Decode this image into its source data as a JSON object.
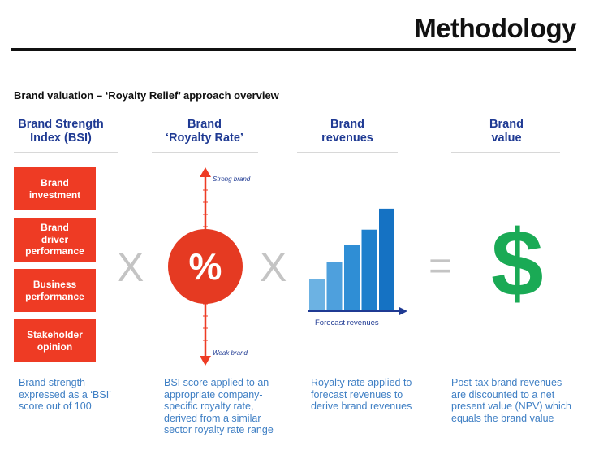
{
  "header": {
    "title": "Methodology",
    "subtitle": "Brand valuation – ‘Royalty Relief’ approach overview"
  },
  "columns": [
    {
      "heading_line1": "Brand Strength",
      "heading_line2": "Index (BSI)"
    },
    {
      "heading_line1": "Brand",
      "heading_line2": "‘Royalty Rate’"
    },
    {
      "heading_line1": "Brand",
      "heading_line2": "revenues"
    },
    {
      "heading_line1": "Brand",
      "heading_line2": "value"
    }
  ],
  "bsi_boxes": [
    {
      "line1": "Brand",
      "line2": "investment",
      "line3": ""
    },
    {
      "line1": "Brand",
      "line2": "driver",
      "line3": "performance"
    },
    {
      "line1": "Business",
      "line2": "performance",
      "line3": ""
    },
    {
      "line1": "Stakeholder",
      "line2": "opinion",
      "line3": ""
    }
  ],
  "operators": {
    "times1": "X",
    "times2": "X",
    "equals": "="
  },
  "royalty": {
    "symbol": "%",
    "axis_top_label": "Strong brand",
    "axis_bottom_label": "Weak brand"
  },
  "revenues": {
    "axis_label": "Forecast revenues",
    "bars": [
      0.28,
      0.44,
      0.59,
      0.73,
      0.92
    ],
    "bar_colors": [
      "#6cb2e3",
      "#4ea0dd",
      "#2f8ed5",
      "#1e7fcc",
      "#1572c3"
    ]
  },
  "value": {
    "symbol": "$",
    "color": "#1aaa55"
  },
  "descriptions": [
    {
      "l1": "Brand strength",
      "l2": "expressed as a ‘BSI’",
      "l3": "score out of 100",
      "l4": "",
      "l5": ""
    },
    {
      "l1": "BSI score applied to an",
      "l2": "appropriate company-",
      "l3": "specific  royalty rate,",
      "l4": "derived from a similar",
      "l5": "sector royalty rate range"
    },
    {
      "l1": "Royalty rate applied to",
      "l2": "forecast revenues to",
      "l3": "derive brand revenues",
      "l4": "",
      "l5": ""
    },
    {
      "l1": "Post-tax brand revenues",
      "l2": "are discounted to a net",
      "l3": "present value (NPV) which",
      "l4": "equals the brand value",
      "l5": ""
    }
  ],
  "colors": {
    "heading_blue": "#1f3a93",
    "accent_red": "#ee3b24",
    "desc_blue": "#3f7fc4"
  }
}
